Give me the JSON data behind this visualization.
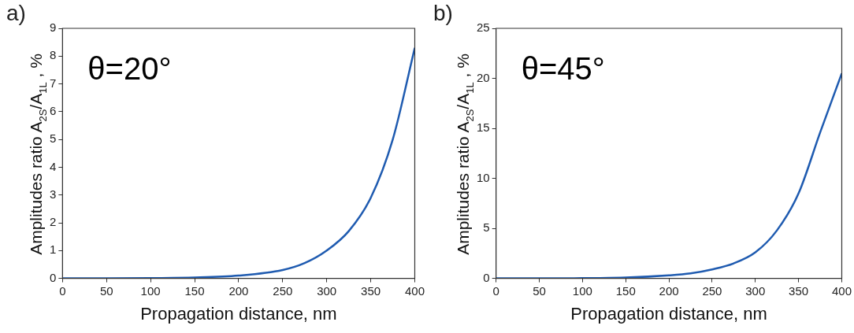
{
  "chart_data": [
    {
      "type": "line",
      "title": "a)",
      "xlabel": "Propagation distance, nm",
      "ylabel": "Amplitudes ratio A$_{2S}$/A$_{1L}$ , %",
      "annotations": [
        "θ=20°"
      ],
      "x": [
        0,
        50,
        100,
        150,
        200,
        250,
        275,
        300,
        325,
        350,
        375,
        400
      ],
      "series": [
        {
          "color": "#1f5bb0",
          "values": [
            0,
            0,
            0.01,
            0.03,
            0.1,
            0.3,
            0.55,
            1.0,
            1.7,
            2.9,
            5.0,
            8.3
          ]
        }
      ],
      "xlim": [
        0,
        400
      ],
      "xticks": [
        0,
        50,
        100,
        150,
        200,
        250,
        300,
        350,
        400
      ],
      "ylim": [
        0,
        9
      ],
      "yticks": [
        0,
        1,
        2,
        3,
        4,
        5,
        6,
        7,
        8,
        9
      ],
      "grid": false,
      "legend": false,
      "marker": "none",
      "line_style": "solid"
    },
    {
      "type": "line",
      "title": "b)",
      "xlabel": "Propagation distance, nm",
      "ylabel": "Amplitudes ratio A$_{2S}$/A$_{1L}$ , %",
      "annotations": [
        "θ=45°"
      ],
      "x": [
        0,
        50,
        100,
        150,
        200,
        225,
        250,
        275,
        300,
        325,
        350,
        375,
        400
      ],
      "series": [
        {
          "color": "#1f5bb0",
          "values": [
            0,
            0,
            0.02,
            0.08,
            0.3,
            0.5,
            0.9,
            1.5,
            2.6,
            4.8,
            8.5,
            14.6,
            20.5
          ]
        }
      ],
      "xlim": [
        0,
        400
      ],
      "xticks": [
        0,
        50,
        100,
        150,
        200,
        250,
        300,
        350,
        400
      ],
      "ylim": [
        0,
        25
      ],
      "yticks": [
        0,
        5,
        10,
        15,
        20,
        25
      ],
      "grid": false,
      "legend": false,
      "marker": "none",
      "line_style": "solid"
    }
  ]
}
